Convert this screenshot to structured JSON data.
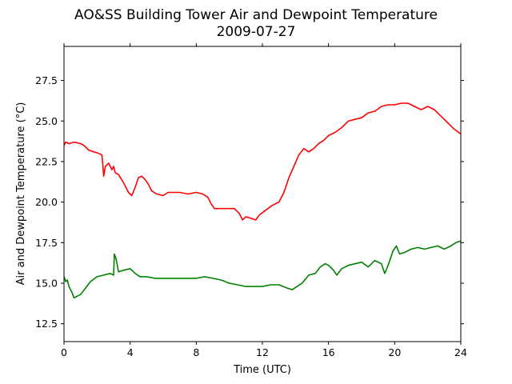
{
  "chart_data": {
    "type": "line",
    "title": "AO&SS Building Tower Air and Dewpoint Temperature",
    "subtitle": "2009-07-27",
    "xlabel": "Time (UTC)",
    "ylabel": "Air and Dewpoint Temperature (°C)",
    "xlim": [
      0,
      24
    ],
    "ylim": [
      11.4,
      29.6
    ],
    "xticks": [
      0,
      4,
      8,
      12,
      16,
      20,
      24
    ],
    "xtick_labels": [
      "0",
      "4",
      "8",
      "12",
      "16",
      "20",
      "24"
    ],
    "yticks": [
      12.5,
      15.0,
      17.5,
      20.0,
      22.5,
      25.0,
      27.5
    ],
    "ytick_labels": [
      "12.5",
      "15.0",
      "17.5",
      "20.0",
      "22.5",
      "25.0",
      "27.5"
    ],
    "grid": false,
    "series": [
      {
        "color": "#ff0000",
        "points": [
          [
            0.0,
            23.5
          ],
          [
            0.1,
            23.7
          ],
          [
            0.3,
            23.6
          ],
          [
            0.6,
            23.7
          ],
          [
            1.0,
            23.6
          ],
          [
            1.2,
            23.5
          ],
          [
            1.5,
            23.2
          ],
          [
            1.8,
            23.1
          ],
          [
            2.1,
            23.0
          ],
          [
            2.3,
            22.9
          ],
          [
            2.4,
            21.6
          ],
          [
            2.5,
            22.2
          ],
          [
            2.7,
            22.4
          ],
          [
            2.9,
            22.0
          ],
          [
            3.0,
            22.2
          ],
          [
            3.1,
            21.8
          ],
          [
            3.3,
            21.7
          ],
          [
            3.6,
            21.2
          ],
          [
            3.9,
            20.6
          ],
          [
            4.1,
            20.4
          ],
          [
            4.3,
            20.9
          ],
          [
            4.5,
            21.5
          ],
          [
            4.7,
            21.6
          ],
          [
            4.9,
            21.4
          ],
          [
            5.1,
            21.1
          ],
          [
            5.3,
            20.7
          ],
          [
            5.6,
            20.5
          ],
          [
            6.0,
            20.4
          ],
          [
            6.3,
            20.6
          ],
          [
            7.0,
            20.6
          ],
          [
            7.5,
            20.5
          ],
          [
            8.0,
            20.6
          ],
          [
            8.4,
            20.5
          ],
          [
            8.7,
            20.3
          ],
          [
            8.9,
            19.9
          ],
          [
            9.1,
            19.6
          ],
          [
            9.5,
            19.6
          ],
          [
            9.9,
            19.6
          ],
          [
            10.3,
            19.6
          ],
          [
            10.6,
            19.3
          ],
          [
            10.8,
            18.9
          ],
          [
            11.0,
            19.1
          ],
          [
            11.3,
            19.0
          ],
          [
            11.6,
            18.9
          ],
          [
            11.8,
            19.2
          ],
          [
            12.2,
            19.5
          ],
          [
            12.6,
            19.8
          ],
          [
            13.0,
            20.0
          ],
          [
            13.3,
            20.6
          ],
          [
            13.6,
            21.5
          ],
          [
            13.9,
            22.2
          ],
          [
            14.2,
            22.9
          ],
          [
            14.5,
            23.3
          ],
          [
            14.8,
            23.1
          ],
          [
            15.1,
            23.3
          ],
          [
            15.4,
            23.6
          ],
          [
            15.7,
            23.8
          ],
          [
            16.0,
            24.1
          ],
          [
            16.4,
            24.3
          ],
          [
            16.8,
            24.6
          ],
          [
            17.2,
            25.0
          ],
          [
            17.6,
            25.1
          ],
          [
            18.0,
            25.2
          ],
          [
            18.4,
            25.5
          ],
          [
            18.8,
            25.6
          ],
          [
            19.2,
            25.9
          ],
          [
            19.6,
            26.0
          ],
          [
            20.0,
            26.0
          ],
          [
            20.4,
            26.1
          ],
          [
            20.8,
            26.1
          ],
          [
            21.2,
            25.9
          ],
          [
            21.6,
            25.7
          ],
          [
            22.0,
            25.9
          ],
          [
            22.4,
            25.7
          ],
          [
            22.8,
            25.3
          ],
          [
            23.2,
            24.9
          ],
          [
            23.6,
            24.5
          ],
          [
            24.0,
            24.2
          ]
        ]
      },
      {
        "color": "#008000",
        "points": [
          [
            0.0,
            15.4
          ],
          [
            0.1,
            15.1
          ],
          [
            0.2,
            15.2
          ],
          [
            0.3,
            14.8
          ],
          [
            0.5,
            14.4
          ],
          [
            0.6,
            14.1
          ],
          [
            0.8,
            14.2
          ],
          [
            1.0,
            14.3
          ],
          [
            1.3,
            14.7
          ],
          [
            1.6,
            15.1
          ],
          [
            2.0,
            15.4
          ],
          [
            2.4,
            15.5
          ],
          [
            2.8,
            15.6
          ],
          [
            3.0,
            15.5
          ],
          [
            3.05,
            16.8
          ],
          [
            3.15,
            16.5
          ],
          [
            3.3,
            15.7
          ],
          [
            3.6,
            15.8
          ],
          [
            4.0,
            15.9
          ],
          [
            4.3,
            15.6
          ],
          [
            4.6,
            15.4
          ],
          [
            5.0,
            15.4
          ],
          [
            5.5,
            15.3
          ],
          [
            6.0,
            15.3
          ],
          [
            7.0,
            15.3
          ],
          [
            8.0,
            15.3
          ],
          [
            8.5,
            15.4
          ],
          [
            9.0,
            15.3
          ],
          [
            9.5,
            15.2
          ],
          [
            10.0,
            15.0
          ],
          [
            10.5,
            14.9
          ],
          [
            11.0,
            14.8
          ],
          [
            11.5,
            14.8
          ],
          [
            12.0,
            14.8
          ],
          [
            12.5,
            14.9
          ],
          [
            13.0,
            14.9
          ],
          [
            13.5,
            14.7
          ],
          [
            13.8,
            14.6
          ],
          [
            14.1,
            14.8
          ],
          [
            14.4,
            15.0
          ],
          [
            14.8,
            15.5
          ],
          [
            15.2,
            15.6
          ],
          [
            15.5,
            16.0
          ],
          [
            15.8,
            16.2
          ],
          [
            16.0,
            16.1
          ],
          [
            16.3,
            15.8
          ],
          [
            16.5,
            15.5
          ],
          [
            16.8,
            15.9
          ],
          [
            17.2,
            16.1
          ],
          [
            17.6,
            16.2
          ],
          [
            18.0,
            16.3
          ],
          [
            18.4,
            16.0
          ],
          [
            18.8,
            16.4
          ],
          [
            19.2,
            16.2
          ],
          [
            19.4,
            15.6
          ],
          [
            19.6,
            16.1
          ],
          [
            19.9,
            17.0
          ],
          [
            20.1,
            17.3
          ],
          [
            20.3,
            16.8
          ],
          [
            20.6,
            16.9
          ],
          [
            21.0,
            17.1
          ],
          [
            21.4,
            17.2
          ],
          [
            21.8,
            17.1
          ],
          [
            22.2,
            17.2
          ],
          [
            22.6,
            17.3
          ],
          [
            23.0,
            17.1
          ],
          [
            23.4,
            17.3
          ],
          [
            23.7,
            17.5
          ],
          [
            24.0,
            17.6
          ]
        ]
      }
    ]
  }
}
